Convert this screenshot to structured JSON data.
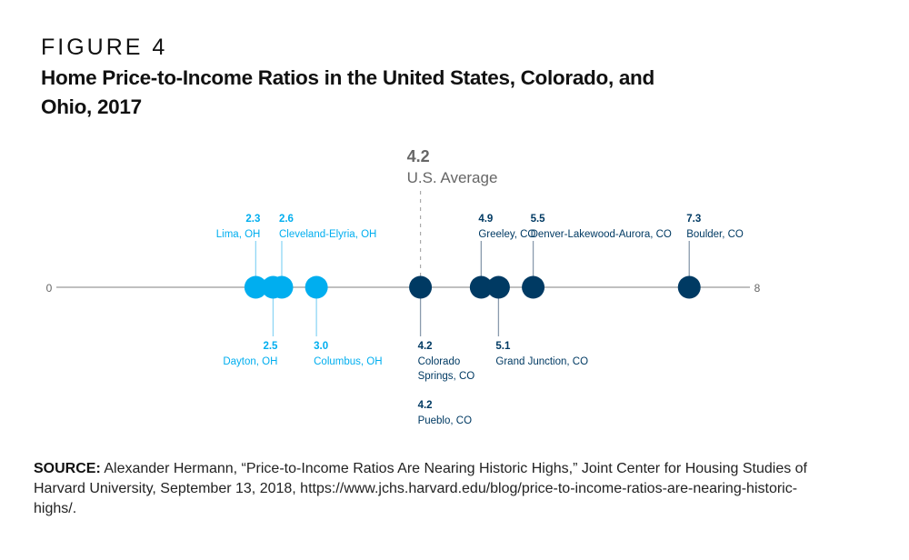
{
  "figure_label": "FIGURE 4",
  "title": "Home Price-to-Income Ratios in the United States, Colorado, and Ohio, 2017",
  "source": {
    "label": "SOURCE:",
    "text": "Alexander Hermann, “Price-to-Income Ratios Are Nearing Historic Highs,” Joint Center for Housing Studies of Harvard University, September 13, 2018, https://www.jchs.harvard.edu/blog/price-to-income-ratios-are-nearing-historic-highs/."
  },
  "colors": {
    "ohio": "#00AEEF",
    "ohio_line": "#8FD6F5",
    "colorado": "#003A63",
    "colorado_line": "#8A9BAD",
    "axis": "#9A9A9A",
    "average": "#666666"
  },
  "chart_data": {
    "type": "scatter",
    "title": "Home Price-to-Income Ratios in the United States, Colorado, and Ohio, 2017",
    "xlabel": "",
    "ylabel": "",
    "xlim": [
      0,
      8
    ],
    "tick_labels": [
      "0",
      "8"
    ],
    "grid": false,
    "reference": {
      "label": "U.S. Average",
      "value": 4.2,
      "value_label": "4.2"
    },
    "series": [
      {
        "name": "Ohio",
        "points": [
          {
            "label": "Lima, OH",
            "value": 2.3,
            "value_label": "2.3",
            "side": "above",
            "align": "end"
          },
          {
            "label": "Cleveland-Elyria, OH",
            "value": 2.6,
            "value_label": "2.6",
            "side": "above",
            "align": "start"
          },
          {
            "label": "Dayton, OH",
            "value": 2.5,
            "value_label": "2.5",
            "side": "below",
            "align": "end"
          },
          {
            "label": "Columbus, OH",
            "value": 3.0,
            "value_label": "3.0",
            "side": "below",
            "align": "start"
          }
        ]
      },
      {
        "name": "Colorado",
        "points": [
          {
            "label": "Colorado Springs, CO",
            "value": 4.2,
            "value_label": "4.2",
            "side": "below",
            "align": "start"
          },
          {
            "label": "Pueblo, CO",
            "value": 4.2,
            "value_label": "4.2",
            "side": "below2",
            "align": "start"
          },
          {
            "label": "Greeley, CO",
            "value": 4.9,
            "value_label": "4.9",
            "side": "above",
            "align": "start"
          },
          {
            "label": "Grand Junction, CO",
            "value": 5.1,
            "value_label": "5.1",
            "side": "below",
            "align": "start"
          },
          {
            "label": "Denver-Lakewood-Aurora, CO",
            "value": 5.5,
            "value_label": "5.5",
            "side": "above",
            "align": "start"
          },
          {
            "label": "Boulder, CO",
            "value": 7.3,
            "value_label": "7.3",
            "side": "above",
            "align": "start"
          }
        ]
      }
    ]
  }
}
